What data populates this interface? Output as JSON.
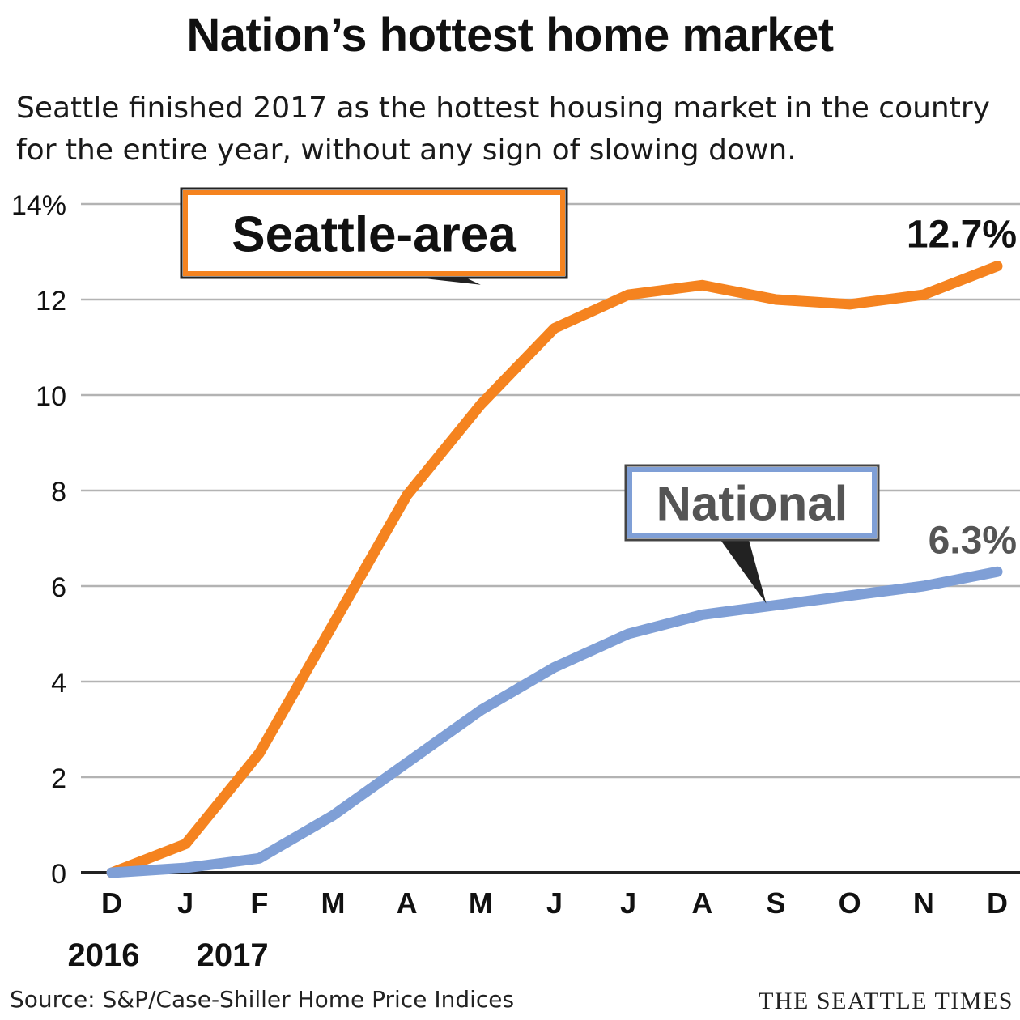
{
  "header": {
    "title": "Nation’s hottest home market",
    "subtitle": "Seattle finished 2017 as the hottest housing market in the country for the entire year, without any sign of slowing down."
  },
  "footer": {
    "source": "Source: S&P/Case-Shiller Home Price Indices",
    "brand": "THE SEATTLE TIMES"
  },
  "colors": {
    "seattle": "#f5831f",
    "national": "#7f9fd6",
    "grid": "#b3b3b3",
    "axis": "#222222",
    "text": "#111111",
    "national_label_text": "#555555"
  },
  "chart_data": {
    "type": "line",
    "title": "Nation’s hottest home market",
    "xlabel": "",
    "ylabel": "",
    "categories": [
      "D",
      "J",
      "F",
      "M",
      "A",
      "M",
      "J",
      "J",
      "A",
      "S",
      "O",
      "N",
      "D"
    ],
    "year_labels": [
      {
        "label": "2016",
        "category_index": 0
      },
      {
        "label": "2017",
        "category_index": 1
      }
    ],
    "ylim": [
      0,
      14
    ],
    "y_ticks": [
      0,
      2,
      4,
      6,
      8,
      10,
      12,
      14
    ],
    "y_tick_labels": [
      "0",
      "2",
      "4",
      "6",
      "8",
      "10",
      "12",
      "14%"
    ],
    "grid": true,
    "series": [
      {
        "name": "Seattle-area",
        "color": "#f5831f",
        "values": [
          0,
          0.6,
          2.5,
          5.2,
          7.9,
          9.8,
          11.4,
          12.1,
          12.3,
          12.0,
          11.9,
          12.1,
          12.7
        ],
        "end_label": "12.7%",
        "callout_index": 5
      },
      {
        "name": "National",
        "color": "#7f9fd6",
        "values": [
          0,
          0.1,
          0.3,
          1.2,
          2.3,
          3.4,
          4.3,
          5.0,
          5.4,
          5.6,
          5.8,
          6.0,
          6.3
        ],
        "end_label": "6.3%",
        "callout_index": 9
      }
    ]
  }
}
